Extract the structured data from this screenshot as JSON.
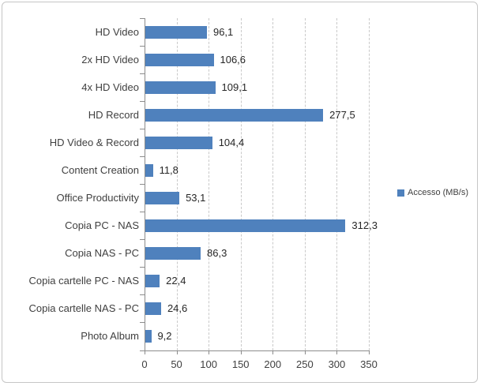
{
  "chart_data": {
    "type": "bar",
    "orientation": "horizontal",
    "title": "",
    "xlabel": "",
    "ylabel": "",
    "categories": [
      "HD Video",
      "2x HD Video",
      "4x HD Video",
      "HD Record",
      "HD Video & Record",
      "Content Creation",
      "Office Productivity",
      "Copia PC - NAS",
      "Copia NAS - PC",
      "Copia cartelle PC - NAS",
      "Copia cartelle NAS - PC",
      "Photo Album"
    ],
    "values": [
      96.1,
      106.6,
      109.1,
      277.5,
      104.4,
      11.8,
      53.1,
      312.3,
      86.3,
      22.4,
      24.6,
      9.2
    ],
    "value_labels": [
      "96,1",
      "106,6",
      "109,1",
      "277,5",
      "104,4",
      "11,8",
      "53,1",
      "312,3",
      "86,3",
      "22,4",
      "24,6",
      "9,2"
    ],
    "xlim": [
      0,
      350
    ],
    "x_ticks": [
      0,
      50,
      100,
      150,
      200,
      250,
      300,
      350
    ],
    "x_tick_labels": [
      "0",
      "50",
      "100",
      "150",
      "200",
      "250",
      "300",
      "350"
    ],
    "legend": [
      {
        "label": "Accesso (MB/s)",
        "color": "#4F81BD"
      }
    ],
    "legend_position": "right",
    "bar_color": "#4F81BD",
    "gridlines": "vertical-dashed",
    "grid_color": "#c9c9c9",
    "axis_color": "#8c8c8c"
  }
}
